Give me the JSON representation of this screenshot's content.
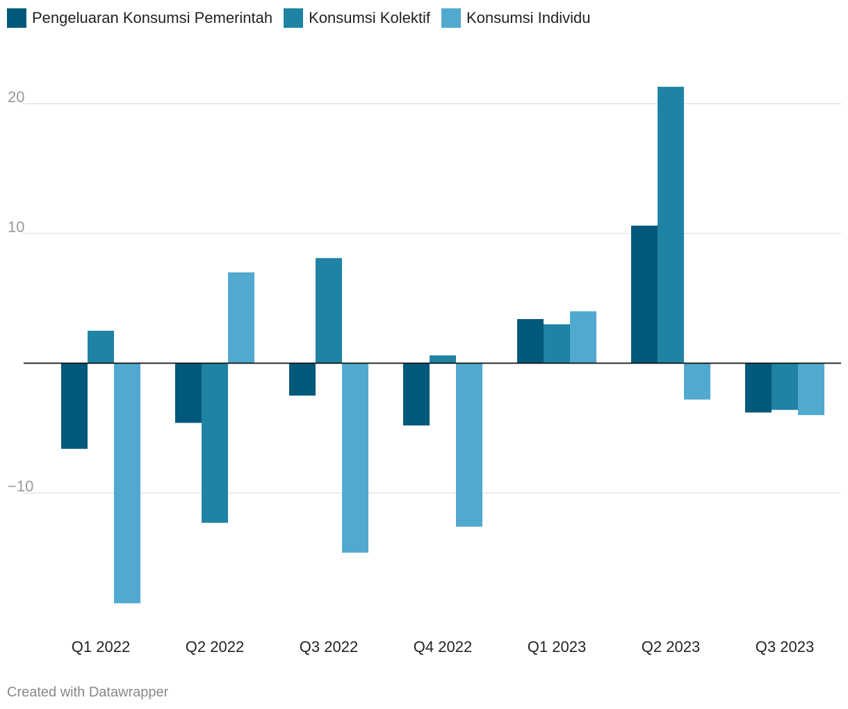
{
  "chart_data": {
    "type": "bar",
    "categories": [
      "Q1 2022",
      "Q2 2022",
      "Q3 2022",
      "Q4 2022",
      "Q1 2023",
      "Q2 2023",
      "Q3 2023"
    ],
    "series": [
      {
        "name": "Pengeluaran Konsumsi Pemerintah",
        "color": "#03597a",
        "values": [
          -6.6,
          -4.6,
          -2.5,
          -4.8,
          3.4,
          10.6,
          -3.8
        ]
      },
      {
        "name": "Konsumsi Kolektif",
        "color": "#1f83a3",
        "values": [
          2.5,
          -12.3,
          8.1,
          0.6,
          3.0,
          21.3,
          -3.6
        ]
      },
      {
        "name": "Konsumsi Individu",
        "color": "#52a9cf",
        "values": [
          -18.5,
          7.0,
          -14.6,
          -12.6,
          4.0,
          -2.8,
          -4.0
        ]
      }
    ],
    "yticks": [
      20,
      10,
      -10
    ],
    "ytick_labels": [
      "20",
      "10",
      "−10"
    ],
    "ylim": [
      -20.5,
      23.5
    ],
    "title": "",
    "xlabel": "",
    "ylabel": "",
    "grid": true,
    "legend_position": "top-left"
  },
  "credit": "Created with Datawrapper"
}
